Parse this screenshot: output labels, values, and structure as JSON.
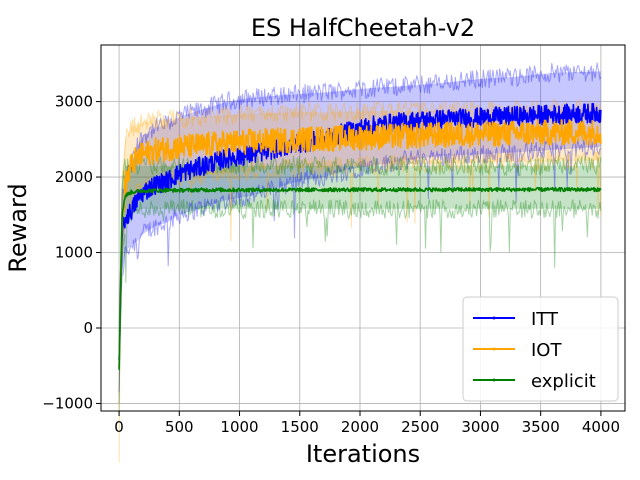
{
  "chart_data": {
    "type": "line",
    "title": "ES HalfCheetah-v2",
    "xlabel": "Iterations",
    "ylabel": "Reward",
    "xlim": [
      -150,
      4200
    ],
    "ylim": [
      -1100,
      3750
    ],
    "xticks": [
      0,
      500,
      1000,
      1500,
      2000,
      2500,
      3000,
      3500,
      4000
    ],
    "xtick_labels": [
      "0",
      "500",
      "1000",
      "1500",
      "2000",
      "2500",
      "3000",
      "3500",
      "4000"
    ],
    "yticks": [
      -1000,
      0,
      1000,
      2000,
      3000
    ],
    "ytick_labels": [
      "−1000",
      "0",
      "1000",
      "2000",
      "3000"
    ],
    "grid": true,
    "legend_position": "lower-right",
    "series": [
      {
        "name": "ITT",
        "color": "#0000ff",
        "x": [
          0,
          25,
          50,
          100,
          150,
          200,
          300,
          400,
          500,
          700,
          900,
          1100,
          1300,
          1500,
          1700,
          1900,
          2100,
          2300,
          2500,
          2700,
          3000,
          3300,
          3600,
          4000
        ],
        "mean": [
          -450,
          1250,
          1450,
          1550,
          1700,
          1800,
          1900,
          1950,
          2050,
          2150,
          2250,
          2300,
          2380,
          2450,
          2500,
          2600,
          2680,
          2720,
          2750,
          2770,
          2790,
          2810,
          2830,
          2850
        ],
        "upper": [
          -100,
          1700,
          1950,
          2150,
          2400,
          2550,
          2650,
          2700,
          2800,
          2900,
          3000,
          3050,
          3080,
          3100,
          3120,
          3150,
          3180,
          3200,
          3220,
          3250,
          3300,
          3330,
          3380,
          3400
        ],
        "lower": [
          -800,
          700,
          1000,
          1100,
          1150,
          1250,
          1350,
          1400,
          1500,
          1600,
          1700,
          1750,
          1850,
          1950,
          2000,
          2100,
          2150,
          2200,
          2250,
          2280,
          2300,
          2330,
          2360,
          2400
        ]
      },
      {
        "name": "IOT",
        "color": "#ffa500",
        "x": [
          0,
          25,
          50,
          100,
          150,
          200,
          300,
          400,
          500,
          700,
          900,
          1100,
          1300,
          1500,
          1700,
          1900,
          2100,
          2300,
          2500,
          2700,
          3000,
          3300,
          3600,
          4000
        ],
        "mean": [
          -500,
          1400,
          1900,
          2150,
          2250,
          2300,
          2350,
          2380,
          2400,
          2420,
          2450,
          2470,
          2480,
          2500,
          2510,
          2520,
          2530,
          2540,
          2550,
          2560,
          2570,
          2580,
          2590,
          2600
        ],
        "upper": [
          -150,
          2000,
          2500,
          2650,
          2700,
          2720,
          2750,
          2770,
          2780,
          2800,
          2820,
          2840,
          2850,
          2860,
          2860,
          2870,
          2870,
          2880,
          2880,
          2880,
          2890,
          2890,
          2900,
          2900
        ],
        "lower": [
          -850,
          900,
          1400,
          1700,
          1800,
          1850,
          1900,
          1950,
          2000,
          2020,
          2050,
          2080,
          2100,
          2120,
          2130,
          2140,
          2150,
          2160,
          2170,
          2180,
          2190,
          2200,
          2210,
          2220
        ]
      },
      {
        "name": "explicit",
        "color": "#008000",
        "x": [
          0,
          25,
          50,
          100,
          150,
          200,
          300,
          400,
          500,
          700,
          900,
          1100,
          1300,
          1500,
          1700,
          1900,
          2100,
          2300,
          2500,
          2700,
          3000,
          3300,
          3600,
          4000
        ],
        "mean": [
          -550,
          1500,
          1750,
          1800,
          1810,
          1820,
          1820,
          1825,
          1825,
          1830,
          1830,
          1830,
          1830,
          1830,
          1832,
          1832,
          1832,
          1833,
          1833,
          1833,
          1834,
          1834,
          1835,
          1835
        ],
        "upper": [
          -200,
          2000,
          2150,
          2150,
          2150,
          2150,
          2150,
          2150,
          2150,
          2150,
          2150,
          2150,
          2150,
          2150,
          2150,
          2150,
          2150,
          2150,
          2150,
          2150,
          2150,
          2150,
          2150,
          2150
        ],
        "lower": [
          -900,
          1000,
          1400,
          1500,
          1550,
          1580,
          1580,
          1580,
          1580,
          1580,
          1580,
          1580,
          1580,
          1580,
          1580,
          1580,
          1580,
          1580,
          1580,
          1580,
          1580,
          1580,
          1580,
          1580
        ]
      }
    ]
  }
}
